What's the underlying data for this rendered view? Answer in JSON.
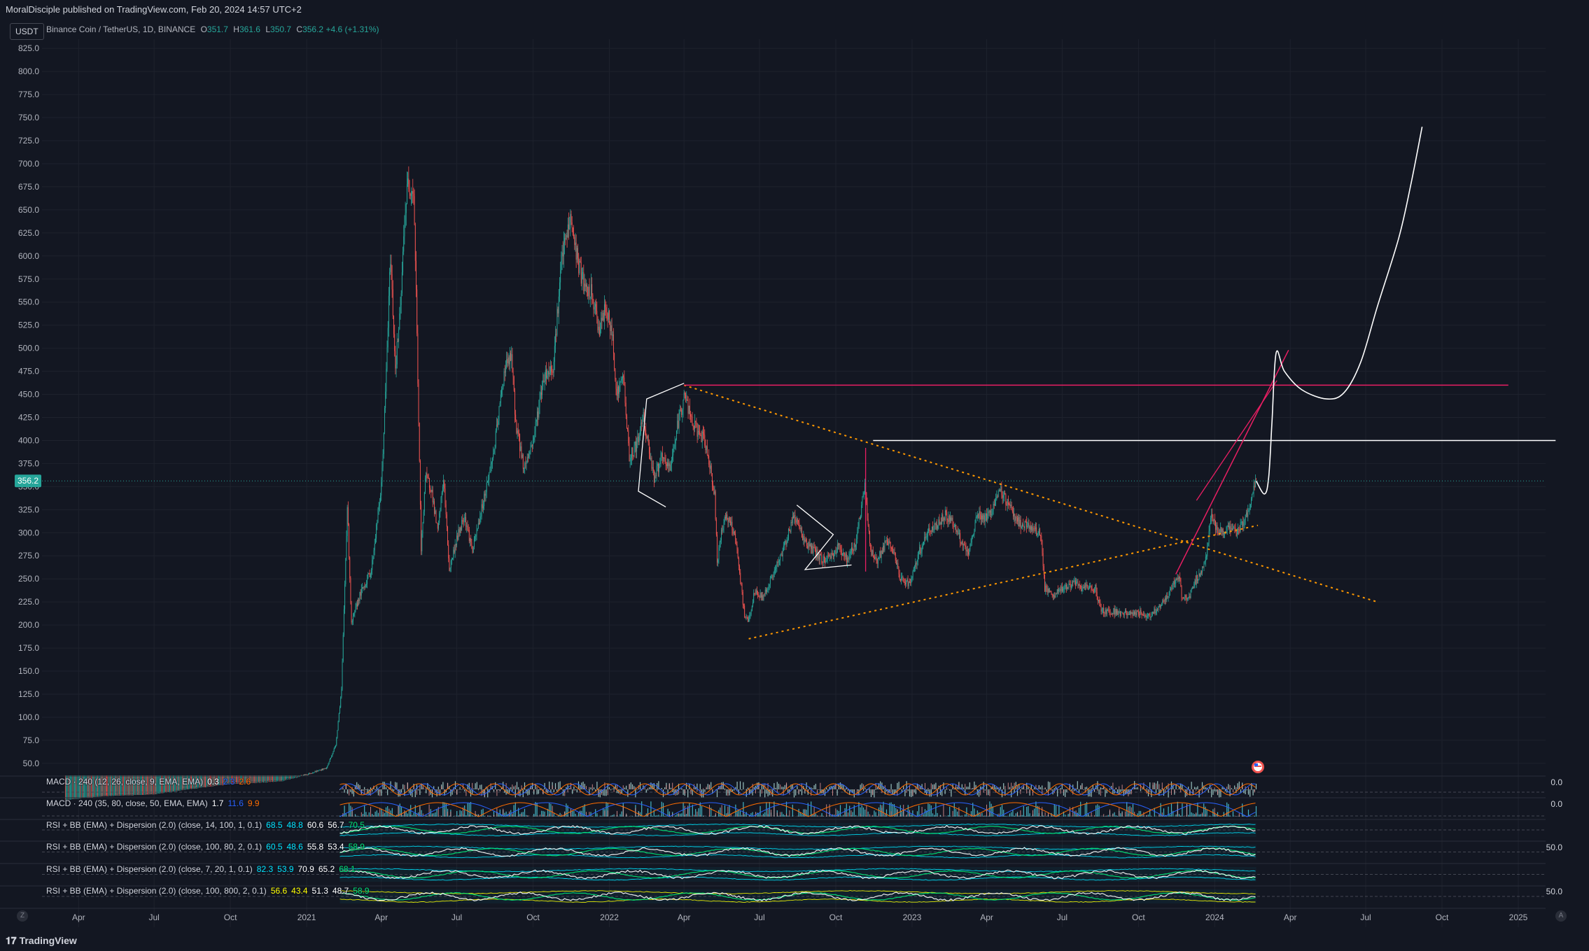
{
  "header": {
    "publish_line": "MoralDisciple published on TradingView.com, Feb 20, 2024 14:57 UTC+2"
  },
  "symbol": {
    "name": "Binance Coin / TetherUS, 1D, BINANCE",
    "o_label": "O",
    "o": "351.7",
    "h_label": "H",
    "h": "361.6",
    "l_label": "L",
    "l": "350.7",
    "c_label": "C",
    "c": "356.2",
    "change": "+4.6 (+1.31%)"
  },
  "currency_button": "USDT",
  "price_badge": "356.2",
  "colors": {
    "up": "#26a69a",
    "down": "#ef5350",
    "bg": "#131722",
    "grid": "#1e222d",
    "pink": "#e91e63",
    "orange": "#ff9800"
  },
  "indicators": [
    {
      "label": "MACD · 240 (12, 26, close, 9, EMA, EMA)",
      "values": [
        {
          "v": "0.3",
          "color": "#ffffff"
        },
        {
          "v": "2.3",
          "color": "#2962ff"
        },
        {
          "v": "2.6",
          "color": "#ff6d00"
        }
      ],
      "right_value": "0.0"
    },
    {
      "label": "MACD · 240 (35, 80, close, 50, EMA, EMA)",
      "values": [
        {
          "v": "1.7",
          "color": "#ffffff"
        },
        {
          "v": "11.6",
          "color": "#2962ff"
        },
        {
          "v": "9.9",
          "color": "#ff6d00"
        }
      ],
      "right_value": "0.0"
    },
    {
      "label": "RSI + BB (EMA) + Dispersion (2.0) (close, 14, 100, 1, 0.1)",
      "values": [
        {
          "v": "68.5",
          "color": "#00e5ff"
        },
        {
          "v": "48.8",
          "color": "#00e5ff"
        },
        {
          "v": "60.6",
          "color": "#ffffff"
        },
        {
          "v": "56.7",
          "color": "#ffffff"
        },
        {
          "v": "70.5",
          "color": "#00e676"
        }
      ],
      "right_value": ""
    },
    {
      "label": "RSI + BB (EMA) + Dispersion (2.0) (close, 100, 80, 2, 0.1)",
      "values": [
        {
          "v": "60.5",
          "color": "#00e5ff"
        },
        {
          "v": "48.6",
          "color": "#00e5ff"
        },
        {
          "v": "55.8",
          "color": "#ffffff"
        },
        {
          "v": "53.4",
          "color": "#ffffff"
        },
        {
          "v": "58.9",
          "color": "#00e676"
        }
      ],
      "right_value": "50.0"
    },
    {
      "label": "RSI + BB (EMA) + Dispersion (2.0) (close, 7, 20, 1, 0.1)",
      "values": [
        {
          "v": "82.3",
          "color": "#00e5ff"
        },
        {
          "v": "53.9",
          "color": "#00e5ff"
        },
        {
          "v": "70.9",
          "color": "#ffffff"
        },
        {
          "v": "65.2",
          "color": "#ffffff"
        },
        {
          "v": "68.1",
          "color": "#00e676"
        }
      ],
      "right_value": ""
    },
    {
      "label": "RSI + BB (EMA) + Dispersion (2.0) (close, 100, 800, 2, 0.1)",
      "values": [
        {
          "v": "56.6",
          "color": "#ffff00"
        },
        {
          "v": "43.4",
          "color": "#ffff00"
        },
        {
          "v": "51.3",
          "color": "#ffffff"
        },
        {
          "v": "48.7",
          "color": "#ffffff"
        },
        {
          "v": "58.9",
          "color": "#00e676"
        }
      ],
      "right_value": "50.0"
    }
  ],
  "footer": {
    "brand": "TradingView"
  },
  "chart_data": {
    "type": "candlestick",
    "title": "Binance Coin / TetherUS, 1D, BINANCE",
    "ylim": [
      37,
      835
    ],
    "y_ticks": [
      50,
      75,
      100,
      125,
      150,
      175,
      200,
      225,
      250,
      275,
      300,
      325,
      350,
      375,
      400,
      425,
      450,
      475,
      500,
      525,
      550,
      575,
      600,
      625,
      650,
      675,
      700,
      725,
      750,
      775,
      800,
      825
    ],
    "x_ticks": [
      {
        "label": "Apr",
        "date": "2020-04-01"
      },
      {
        "label": "Jul",
        "date": "2020-07-01"
      },
      {
        "label": "Oct",
        "date": "2020-10-01"
      },
      {
        "label": "2021",
        "date": "2021-01-01"
      },
      {
        "label": "Apr",
        "date": "2021-04-01"
      },
      {
        "label": "Jul",
        "date": "2021-07-01"
      },
      {
        "label": "Oct",
        "date": "2021-10-01"
      },
      {
        "label": "2022",
        "date": "2022-01-01"
      },
      {
        "label": "Apr",
        "date": "2022-04-01"
      },
      {
        "label": "Jul",
        "date": "2022-07-01"
      },
      {
        "label": "Oct",
        "date": "2022-10-01"
      },
      {
        "label": "2023",
        "date": "2023-01-01"
      },
      {
        "label": "Apr",
        "date": "2023-04-01"
      },
      {
        "label": "Jul",
        "date": "2023-07-01"
      },
      {
        "label": "Oct",
        "date": "2023-10-01"
      },
      {
        "label": "2024",
        "date": "2024-01-01"
      },
      {
        "label": "Apr",
        "date": "2024-04-01"
      },
      {
        "label": "Jul",
        "date": "2024-07-01"
      },
      {
        "label": "Oct",
        "date": "2024-10-01"
      },
      {
        "label": "2025",
        "date": "2025-01-01"
      }
    ],
    "last_price": 356.2,
    "price_path": [
      [
        "2020-03-16",
        11
      ],
      [
        "2020-05-01",
        15
      ],
      [
        "2020-07-01",
        17
      ],
      [
        "2020-08-15",
        23
      ],
      [
        "2020-10-01",
        28
      ],
      [
        "2020-12-01",
        31
      ],
      [
        "2021-01-01",
        38
      ],
      [
        "2021-01-25",
        45
      ],
      [
        "2021-02-05",
        70
      ],
      [
        "2021-02-12",
        130
      ],
      [
        "2021-02-19",
        330
      ],
      [
        "2021-02-24",
        200
      ],
      [
        "2021-03-05",
        230
      ],
      [
        "2021-03-20",
        260
      ],
      [
        "2021-04-01",
        350
      ],
      [
        "2021-04-06",
        450
      ],
      [
        "2021-04-12",
        600
      ],
      [
        "2021-04-18",
        480
      ],
      [
        "2021-04-24",
        540
      ],
      [
        "2021-04-29",
        640
      ],
      [
        "2021-05-03",
        680
      ],
      [
        "2021-05-10",
        670
      ],
      [
        "2021-05-13",
        560
      ],
      [
        "2021-05-19",
        280
      ],
      [
        "2021-05-24",
        360
      ],
      [
        "2021-05-31",
        350
      ],
      [
        "2021-06-08",
        300
      ],
      [
        "2021-06-15",
        360
      ],
      [
        "2021-06-22",
        260
      ],
      [
        "2021-06-30",
        290
      ],
      [
        "2021-07-10",
        320
      ],
      [
        "2021-07-20",
        280
      ],
      [
        "2021-08-01",
        330
      ],
      [
        "2021-08-15",
        390
      ],
      [
        "2021-08-28",
        480
      ],
      [
        "2021-09-05",
        490
      ],
      [
        "2021-09-10",
        420
      ],
      [
        "2021-09-20",
        370
      ],
      [
        "2021-10-01",
        400
      ],
      [
        "2021-10-14",
        470
      ],
      [
        "2021-10-25",
        480
      ],
      [
        "2021-11-05",
        600
      ],
      [
        "2021-11-15",
        640
      ],
      [
        "2021-11-25",
        590
      ],
      [
        "2021-12-04",
        560
      ],
      [
        "2021-12-10",
        560
      ],
      [
        "2021-12-20",
        520
      ],
      [
        "2021-12-28",
        545
      ],
      [
        "2022-01-05",
        510
      ],
      [
        "2022-01-10",
        450
      ],
      [
        "2022-01-18",
        470
      ],
      [
        "2022-01-25",
        380
      ],
      [
        "2022-02-05",
        400
      ],
      [
        "2022-02-10",
        430
      ],
      [
        "2022-02-24",
        360
      ],
      [
        "2022-03-05",
        380
      ],
      [
        "2022-03-15",
        370
      ],
      [
        "2022-03-25",
        420
      ],
      [
        "2022-04-02",
        450
      ],
      [
        "2022-04-10",
        420
      ],
      [
        "2022-04-25",
        400
      ],
      [
        "2022-05-01",
        380
      ],
      [
        "2022-05-08",
        340
      ],
      [
        "2022-05-11",
        270
      ],
      [
        "2022-05-20",
        320
      ],
      [
        "2022-06-01",
        300
      ],
      [
        "2022-06-13",
        210
      ],
      [
        "2022-06-18",
        205
      ],
      [
        "2022-06-25",
        235
      ],
      [
        "2022-07-05",
        230
      ],
      [
        "2022-07-15",
        250
      ],
      [
        "2022-07-25",
        270
      ],
      [
        "2022-08-05",
        300
      ],
      [
        "2022-08-12",
        320
      ],
      [
        "2022-08-25",
        290
      ],
      [
        "2022-09-05",
        280
      ],
      [
        "2022-09-15",
        270
      ],
      [
        "2022-09-25",
        275
      ],
      [
        "2022-10-05",
        285
      ],
      [
        "2022-10-15",
        270
      ],
      [
        "2022-10-25",
        290
      ],
      [
        "2022-11-05",
        350
      ],
      [
        "2022-11-08",
        320
      ],
      [
        "2022-11-12",
        280
      ],
      [
        "2022-11-20",
        270
      ],
      [
        "2022-12-01",
        290
      ],
      [
        "2022-12-10",
        280
      ],
      [
        "2022-12-17",
        250
      ],
      [
        "2022-12-30",
        245
      ],
      [
        "2023-01-10",
        280
      ],
      [
        "2023-01-20",
        300
      ],
      [
        "2023-02-01",
        310
      ],
      [
        "2023-02-10",
        320
      ],
      [
        "2023-02-20",
        310
      ],
      [
        "2023-03-01",
        290
      ],
      [
        "2023-03-10",
        275
      ],
      [
        "2023-03-20",
        320
      ],
      [
        "2023-04-01",
        315
      ],
      [
        "2023-04-18",
        345
      ],
      [
        "2023-04-28",
        330
      ],
      [
        "2023-05-10",
        310
      ],
      [
        "2023-05-25",
        305
      ],
      [
        "2023-06-05",
        300
      ],
      [
        "2023-06-10",
        240
      ],
      [
        "2023-06-20",
        230
      ],
      [
        "2023-07-01",
        240
      ],
      [
        "2023-07-15",
        245
      ],
      [
        "2023-07-25",
        240
      ],
      [
        "2023-08-10",
        240
      ],
      [
        "2023-08-17",
        215
      ],
      [
        "2023-09-01",
        215
      ],
      [
        "2023-09-15",
        212
      ],
      [
        "2023-10-01",
        213
      ],
      [
        "2023-10-15",
        210
      ],
      [
        "2023-10-25",
        220
      ],
      [
        "2023-11-05",
        230
      ],
      [
        "2023-11-15",
        250
      ],
      [
        "2023-11-20",
        250
      ],
      [
        "2023-11-22",
        230
      ],
      [
        "2023-12-01",
        230
      ],
      [
        "2023-12-10",
        250
      ],
      [
        "2023-12-20",
        265
      ],
      [
        "2023-12-28",
        320
      ],
      [
        "2024-01-05",
        300
      ],
      [
        "2024-01-15",
        305
      ],
      [
        "2024-01-25",
        300
      ],
      [
        "2024-02-05",
        310
      ],
      [
        "2024-02-15",
        340
      ],
      [
        "2024-02-20",
        356
      ]
    ],
    "drawings": {
      "dotted_down_trendline": {
        "color": "#ff9800",
        "points": [
          [
            "2022-04-01",
            460
          ],
          [
            "2024-07-15",
            225
          ]
        ]
      },
      "dotted_up_trendline": {
        "color": "#ff9800",
        "points": [
          [
            "2022-06-18",
            185
          ],
          [
            "2024-02-22",
            308
          ]
        ]
      },
      "pink_horizontal": {
        "color": "#e91e63",
        "points": [
          [
            "2022-04-01",
            460
          ],
          [
            "2024-12-20",
            460
          ]
        ]
      },
      "white_horizontal": {
        "color": "#ffffff",
        "points": [
          [
            "2022-11-15",
            400
          ],
          [
            "2025-02-15",
            400
          ]
        ]
      },
      "pink_channel": {
        "color": "#e91e63",
        "points": [
          [
            "2023-11-15",
            255
          ],
          [
            "2024-03-30",
            498
          ]
        ]
      },
      "pink_channel_2": {
        "color": "#e91e63",
        "points": [
          [
            "2023-12-10",
            335
          ],
          [
            "2024-03-16",
            465
          ]
        ]
      },
      "pink_vertical": {
        "color": "#e91e63",
        "points": [
          [
            "2022-11-06",
            258
          ],
          [
            "2022-11-06",
            392
          ]
        ]
      },
      "projection_curve": {
        "color": "#ffffff",
        "points": [
          [
            "2024-02-20",
            356
          ],
          [
            "2024-03-01",
            342
          ],
          [
            "2024-03-06",
            360
          ],
          [
            "2024-03-10",
            420
          ],
          [
            "2024-03-15",
            495
          ],
          [
            "2024-03-25",
            475
          ],
          [
            "2024-04-15",
            455
          ],
          [
            "2024-05-15",
            445
          ],
          [
            "2024-06-05",
            452
          ],
          [
            "2024-06-25",
            485
          ],
          [
            "2024-07-15",
            545
          ],
          [
            "2024-08-10",
            620
          ],
          [
            "2024-08-25",
            680
          ],
          [
            "2024-09-07",
            740
          ]
        ]
      },
      "wedge_1": {
        "color": "#ffffff",
        "points": [
          [
            "2022-02-05",
            345
          ],
          [
            "2022-02-15",
            445
          ],
          [
            "2022-04-01",
            462
          ],
          [
            "2022-02-15",
            445
          ],
          [
            "2022-02-05",
            345
          ],
          [
            "2022-03-10",
            328
          ]
        ]
      },
      "wedge_2": {
        "color": "#ffffff",
        "points": [
          [
            "2022-08-15",
            330
          ],
          [
            "2022-09-28",
            298
          ],
          [
            "2022-08-25",
            260
          ],
          [
            "2022-10-20",
            265
          ]
        ]
      }
    }
  }
}
